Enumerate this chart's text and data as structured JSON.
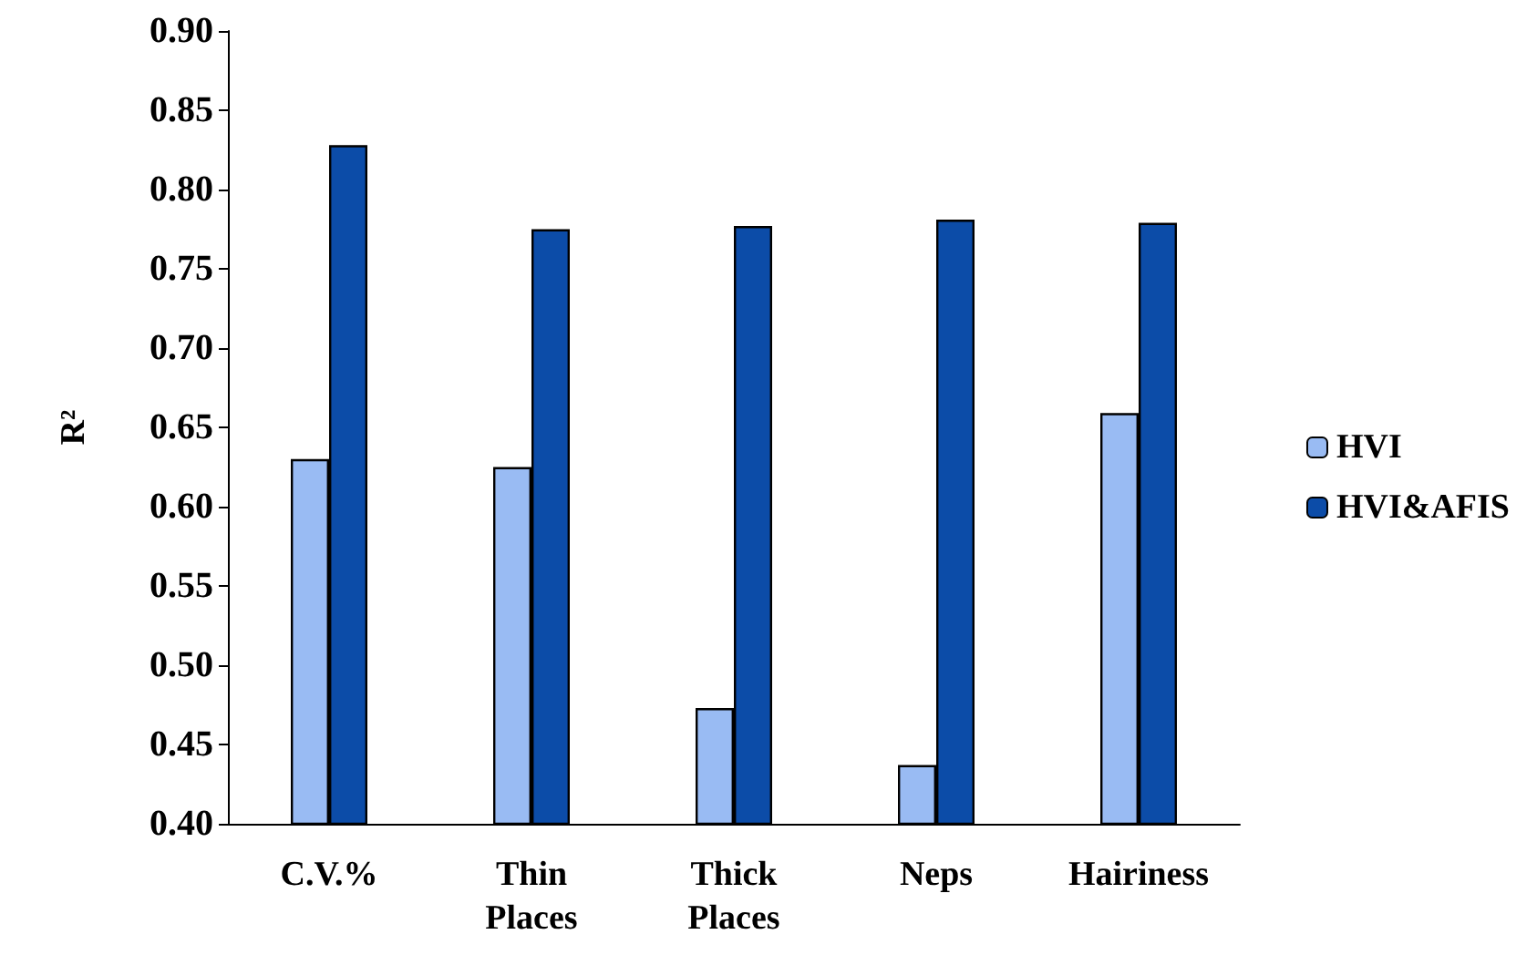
{
  "chart_data": {
    "type": "bar",
    "ylabel": "R²",
    "categories": [
      "C.V.%",
      "Thin\nPlaces",
      "Thick\nPlaces",
      "Neps",
      "Hairiness"
    ],
    "series": [
      {
        "name": "HVI",
        "color": "#99bbf3",
        "values": [
          0.63,
          0.625,
          0.473,
          0.437,
          0.659
        ]
      },
      {
        "name": "HVI&AFIS",
        "color": "#0c4ca8",
        "values": [
          0.828,
          0.775,
          0.777,
          0.781,
          0.779
        ]
      }
    ],
    "ylim": [
      0.4,
      0.9
    ],
    "yticks": [
      {
        "value": 0.4,
        "label": "0.40"
      },
      0.45,
      {
        "value": 0.5,
        "label": "0.50"
      },
      0.55,
      {
        "value": 0.6,
        "label": "0.60"
      },
      0.65,
      {
        "value": 0.7,
        "label": "0.70"
      },
      0.75,
      {
        "value": 0.8,
        "label": "0.80"
      },
      0.85,
      {
        "value": 0.9,
        "label": "0.90"
      }
    ],
    "grid": false,
    "legend": "right"
  }
}
